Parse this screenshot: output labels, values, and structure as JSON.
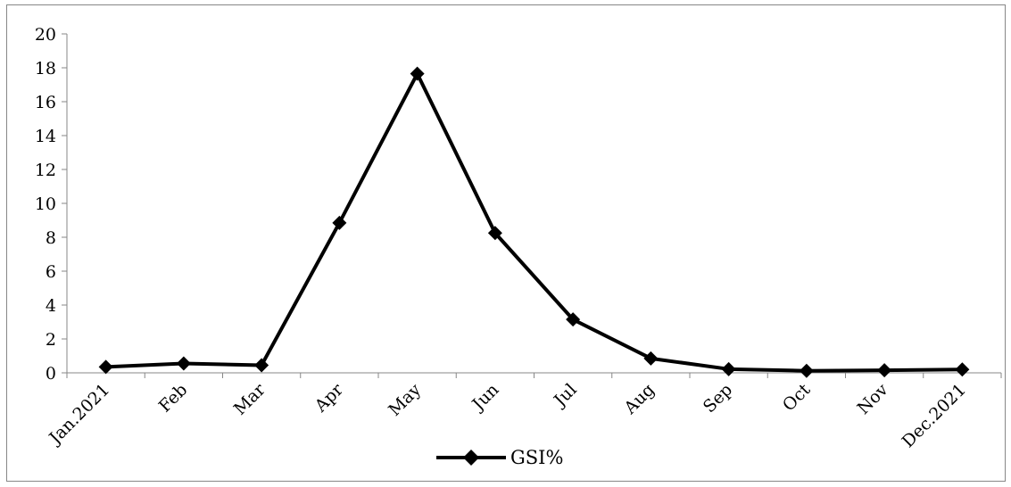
{
  "chart_data": {
    "type": "line",
    "categories": [
      "Jan.2021",
      "Feb",
      "Mar",
      "Apr",
      "May",
      "Jun",
      "Jul",
      "Aug",
      "Sep",
      "Oct",
      "Nov",
      "Dec.2021"
    ],
    "series": [
      {
        "name": "GSI%",
        "values": [
          0.35,
          0.55,
          0.45,
          8.85,
          17.65,
          8.25,
          3.15,
          0.85,
          0.22,
          0.12,
          0.15,
          0.2
        ],
        "color": "#000000",
        "marker": "diamond"
      }
    ],
    "ylim": [
      0,
      20
    ],
    "yticks": [
      0,
      2,
      4,
      6,
      8,
      10,
      12,
      14,
      16,
      18,
      20
    ],
    "grid": false,
    "legend_position": "bottom"
  }
}
